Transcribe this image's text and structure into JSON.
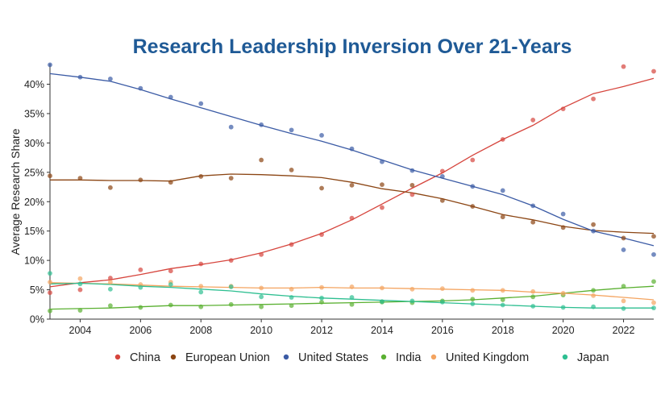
{
  "chart_data": {
    "type": "scatter",
    "title": "Research Leadership Inversion Over 21-Years",
    "title_color": "#1f5a96",
    "xlabel": "",
    "ylabel": "Average Research Share",
    "xlim": [
      2003,
      2023
    ],
    "ylim": [
      0,
      43.5
    ],
    "xticks": [
      "2004",
      "2006",
      "2008",
      "2010",
      "2012",
      "2014",
      "2016",
      "2018",
      "2020",
      "2022"
    ],
    "yticks": [
      "0%",
      "5%",
      "10%",
      "15%",
      "20%",
      "25%",
      "30%",
      "35%",
      "40%"
    ],
    "grid": false,
    "legend_position": "bottom",
    "x": [
      2003,
      2004,
      2005,
      2006,
      2007,
      2008,
      2009,
      2010,
      2011,
      2012,
      2013,
      2014,
      2015,
      2016,
      2017,
      2018,
      2019,
      2020,
      2021,
      2022,
      2023
    ],
    "series": [
      {
        "name": "China",
        "color": "#d6453d",
        "points": [
          4.5,
          5.0,
          7.0,
          8.4,
          8.2,
          9.4,
          10.0,
          11.0,
          12.7,
          14.4,
          17.2,
          19.0,
          21.2,
          25.2,
          27.1,
          30.6,
          33.9,
          35.8,
          37.5,
          43.0,
          42.2
        ],
        "trend": [
          5.5,
          6.2,
          6.7,
          7.6,
          8.6,
          9.3,
          10.1,
          11.3,
          12.8,
          14.6,
          16.9,
          19.6,
          22.3,
          24.9,
          27.9,
          30.6,
          33.0,
          36.0,
          38.4,
          39.6,
          41.0
        ]
      },
      {
        "name": "European Union",
        "color": "#8b4513",
        "points": [
          24.4,
          24.0,
          22.4,
          23.7,
          23.3,
          24.3,
          24.0,
          27.1,
          25.4,
          22.3,
          22.8,
          22.9,
          22.8,
          20.2,
          19.2,
          17.4,
          16.5,
          15.6,
          16.1,
          13.8,
          14.1
        ],
        "trend": [
          23.7,
          23.7,
          23.6,
          23.6,
          23.5,
          24.4,
          24.7,
          24.6,
          24.4,
          24.1,
          23.3,
          22.2,
          21.5,
          20.5,
          19.2,
          17.8,
          16.9,
          15.8,
          15.1,
          14.8,
          14.6
        ]
      },
      {
        "name": "United States",
        "color": "#3b5ba5",
        "points": [
          43.3,
          41.2,
          40.9,
          39.3,
          37.8,
          36.7,
          32.7,
          33.1,
          32.2,
          31.3,
          29.0,
          26.8,
          25.3,
          24.3,
          22.6,
          21.9,
          19.3,
          17.9,
          15.0,
          11.8,
          11.0
        ],
        "trend": [
          41.8,
          41.2,
          40.5,
          39.1,
          37.5,
          36.0,
          34.5,
          33.0,
          31.6,
          30.3,
          28.8,
          27.1,
          25.4,
          24.0,
          22.6,
          21.2,
          19.3,
          17.0,
          15.0,
          13.8,
          12.5
        ]
      },
      {
        "name": "India",
        "color": "#5ab031",
        "points": [
          1.4,
          1.5,
          2.3,
          2.0,
          2.4,
          2.1,
          2.5,
          2.1,
          2.3,
          2.9,
          2.5,
          2.9,
          2.8,
          3.1,
          3.4,
          3.3,
          3.8,
          4.1,
          4.9,
          5.6,
          6.4
        ],
        "trend": [
          1.7,
          1.8,
          1.9,
          2.1,
          2.3,
          2.3,
          2.4,
          2.5,
          2.6,
          2.7,
          2.8,
          2.9,
          3.0,
          3.1,
          3.3,
          3.6,
          3.9,
          4.4,
          4.9,
          5.3,
          5.6
        ]
      },
      {
        "name": "United Kingdom",
        "color": "#f4a460",
        "points": [
          6.3,
          6.9,
          6.3,
          5.9,
          6.3,
          5.6,
          5.6,
          5.3,
          5.1,
          5.4,
          5.5,
          5.3,
          5.1,
          5.2,
          4.9,
          4.9,
          4.7,
          4.4,
          4.0,
          3.1,
          2.8
        ],
        "trend": [
          6.2,
          6.1,
          6.0,
          5.8,
          5.6,
          5.5,
          5.4,
          5.3,
          5.3,
          5.4,
          5.3,
          5.3,
          5.2,
          5.1,
          5.0,
          4.9,
          4.6,
          4.4,
          4.1,
          3.7,
          3.3
        ]
      },
      {
        "name": "Japan",
        "color": "#2ebf91",
        "points": [
          7.8,
          6.0,
          5.1,
          5.4,
          5.9,
          4.6,
          5.5,
          3.8,
          3.7,
          3.6,
          3.7,
          3.0,
          3.1,
          2.9,
          2.6,
          2.4,
          2.2,
          2.0,
          2.1,
          1.8,
          1.9
        ],
        "trend": [
          6.0,
          6.1,
          5.9,
          5.6,
          5.4,
          5.1,
          4.8,
          4.3,
          3.9,
          3.6,
          3.4,
          3.2,
          3.0,
          2.8,
          2.6,
          2.4,
          2.2,
          2.0,
          1.9,
          1.9,
          1.9
        ]
      }
    ]
  }
}
